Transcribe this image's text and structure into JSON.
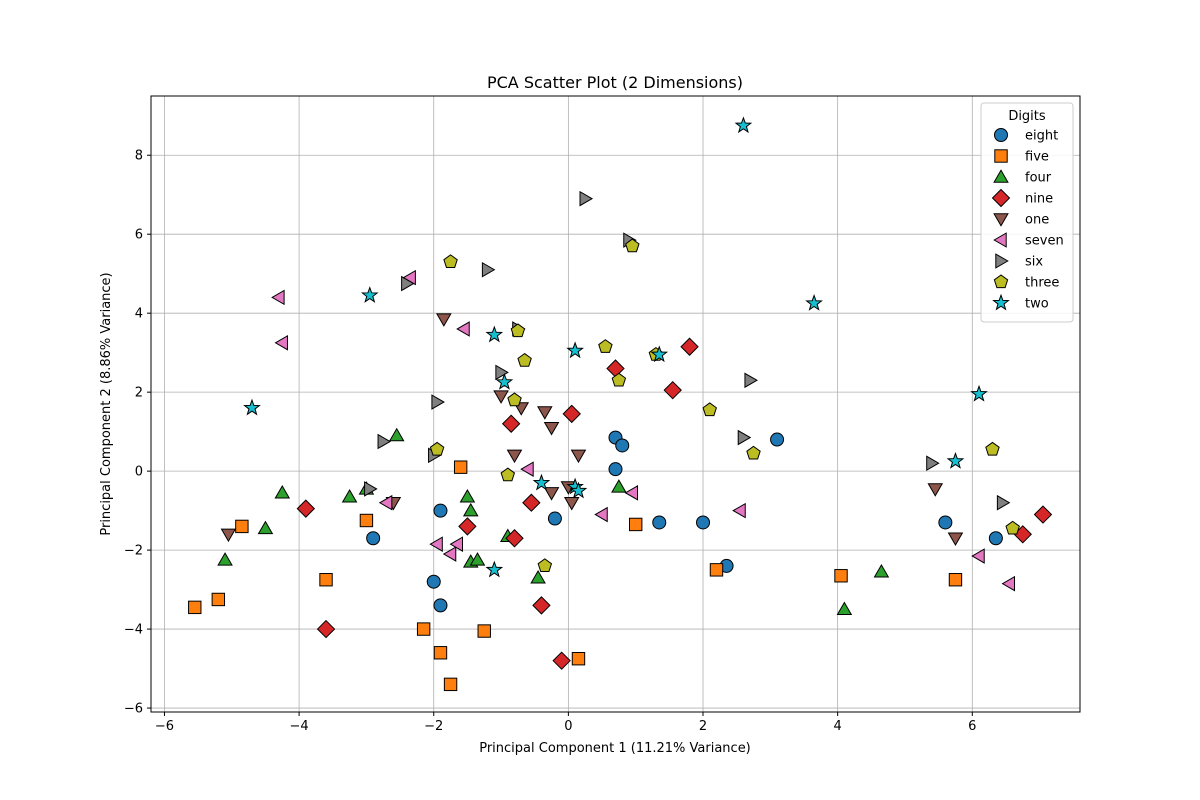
{
  "chart_data": {
    "type": "scatter",
    "title": "PCA Scatter Plot (2 Dimensions)",
    "xlabel": "Principal Component 1 (11.21% Variance)",
    "ylabel": "Principal Component 2 (8.86% Variance)",
    "xlim": [
      -6.2,
      7.6
    ],
    "ylim": [
      -6.1,
      9.5
    ],
    "xticks": [
      -6,
      -4,
      -2,
      0,
      2,
      4,
      6
    ],
    "yticks": [
      -6,
      -4,
      -2,
      0,
      2,
      4,
      6,
      8
    ],
    "xtick_labels": [
      "−6",
      "−4",
      "−2",
      "0",
      "2",
      "4",
      "6"
    ],
    "ytick_labels": [
      "−6",
      "−4",
      "−2",
      "0",
      "2",
      "4",
      "6",
      "8"
    ],
    "grid": true,
    "legend": {
      "title": "Digits",
      "placement": "top-right"
    },
    "series": [
      {
        "name": "eight",
        "marker": "circle",
        "color": "#1f77b4",
        "points": [
          [
            -2.9,
            -1.7
          ],
          [
            -1.9,
            -1.0
          ],
          [
            -2.0,
            -2.8
          ],
          [
            -1.9,
            -3.4
          ],
          [
            -0.2,
            -1.2
          ],
          [
            0.7,
            0.85
          ],
          [
            0.8,
            0.65
          ],
          [
            0.7,
            0.05
          ],
          [
            1.35,
            -1.3
          ],
          [
            2.0,
            -1.3
          ],
          [
            2.35,
            -2.4
          ],
          [
            3.1,
            0.8
          ],
          [
            5.6,
            -1.3
          ],
          [
            6.35,
            -1.7
          ]
        ]
      },
      {
        "name": "five",
        "marker": "square",
        "color": "#ff7f0e",
        "points": [
          [
            -5.55,
            -3.45
          ],
          [
            -5.2,
            -3.25
          ],
          [
            -4.85,
            -1.4
          ],
          [
            -3.6,
            -2.75
          ],
          [
            -3.0,
            -1.25
          ],
          [
            -2.15,
            -4.0
          ],
          [
            -1.9,
            -4.6
          ],
          [
            -1.75,
            -5.4
          ],
          [
            -1.6,
            0.1
          ],
          [
            -1.25,
            -4.05
          ],
          [
            0.15,
            -4.75
          ],
          [
            1.0,
            -1.35
          ],
          [
            2.2,
            -2.5
          ],
          [
            4.05,
            -2.65
          ],
          [
            5.75,
            -2.75
          ]
        ]
      },
      {
        "name": "four",
        "marker": "triangle-up",
        "color": "#2ca02c",
        "points": [
          [
            -5.1,
            -2.25
          ],
          [
            -4.5,
            -1.45
          ],
          [
            -4.25,
            -0.55
          ],
          [
            -3.25,
            -0.65
          ],
          [
            -3.0,
            -0.45
          ],
          [
            -2.55,
            0.9
          ],
          [
            -1.5,
            -0.65
          ],
          [
            -1.45,
            -1.0
          ],
          [
            -1.45,
            -2.3
          ],
          [
            -1.35,
            -2.25
          ],
          [
            -0.9,
            -1.65
          ],
          [
            -0.45,
            -2.7
          ],
          [
            0.75,
            -0.4
          ],
          [
            4.1,
            -3.5
          ],
          [
            4.65,
            -2.55
          ]
        ]
      },
      {
        "name": "nine",
        "marker": "diamond",
        "color": "#d62728",
        "points": [
          [
            -3.9,
            -0.95
          ],
          [
            -3.6,
            -4.0
          ],
          [
            -1.5,
            -1.4
          ],
          [
            -0.85,
            1.2
          ],
          [
            -0.8,
            -1.7
          ],
          [
            -0.55,
            -0.8
          ],
          [
            -0.4,
            -3.4
          ],
          [
            -0.1,
            -4.8
          ],
          [
            0.05,
            1.45
          ],
          [
            0.7,
            2.6
          ],
          [
            1.55,
            2.05
          ],
          [
            1.8,
            3.15
          ],
          [
            6.75,
            -1.6
          ],
          [
            7.05,
            -1.1
          ]
        ]
      },
      {
        "name": "one",
        "marker": "triangle-down",
        "color": "#8c564b",
        "points": [
          [
            -5.05,
            -1.6
          ],
          [
            -2.6,
            -0.8
          ],
          [
            -1.85,
            3.85
          ],
          [
            -1.0,
            1.9
          ],
          [
            -0.8,
            0.4
          ],
          [
            -0.7,
            1.6
          ],
          [
            -0.35,
            1.5
          ],
          [
            -0.25,
            1.1
          ],
          [
            -0.25,
            -0.55
          ],
          [
            0.0,
            -0.4
          ],
          [
            0.05,
            -0.8
          ],
          [
            0.15,
            0.4
          ],
          [
            5.45,
            -0.45
          ],
          [
            5.75,
            -1.7
          ]
        ]
      },
      {
        "name": "seven",
        "marker": "triangle-left",
        "color": "#e377c2",
        "points": [
          [
            -4.3,
            4.4
          ],
          [
            -4.25,
            3.25
          ],
          [
            -2.7,
            -0.8
          ],
          [
            -2.35,
            4.9
          ],
          [
            -1.95,
            -1.85
          ],
          [
            -1.75,
            -2.1
          ],
          [
            -1.65,
            -1.85
          ],
          [
            -1.55,
            3.6
          ],
          [
            -0.6,
            0.05
          ],
          [
            0.5,
            -1.1
          ],
          [
            0.95,
            -0.55
          ],
          [
            2.55,
            -1.0
          ],
          [
            6.1,
            -2.15
          ],
          [
            6.55,
            -2.85
          ]
        ]
      },
      {
        "name": "six",
        "marker": "triangle-right",
        "color": "#7f7f7f",
        "points": [
          [
            -2.95,
            -0.45
          ],
          [
            -2.75,
            0.75
          ],
          [
            -2.4,
            4.75
          ],
          [
            -2.0,
            0.4
          ],
          [
            -1.95,
            1.75
          ],
          [
            -1.2,
            5.1
          ],
          [
            -1.0,
            2.5
          ],
          [
            -0.75,
            3.6
          ],
          [
            0.25,
            6.9
          ],
          [
            0.9,
            5.85
          ],
          [
            2.6,
            0.85
          ],
          [
            2.7,
            2.3
          ],
          [
            5.4,
            0.2
          ],
          [
            6.45,
            -0.8
          ]
        ]
      },
      {
        "name": "three",
        "marker": "pentagon",
        "color": "#bcbd22",
        "points": [
          [
            -1.95,
            0.55
          ],
          [
            -1.75,
            5.3
          ],
          [
            -0.9,
            -0.1
          ],
          [
            -0.8,
            1.8
          ],
          [
            -0.75,
            3.55
          ],
          [
            -0.65,
            2.8
          ],
          [
            -0.35,
            -2.4
          ],
          [
            0.55,
            3.15
          ],
          [
            0.75,
            2.3
          ],
          [
            0.95,
            5.7
          ],
          [
            1.3,
            2.95
          ],
          [
            2.1,
            1.55
          ],
          [
            2.75,
            0.45
          ],
          [
            6.3,
            0.55
          ],
          [
            6.6,
            -1.45
          ]
        ]
      },
      {
        "name": "two",
        "marker": "star",
        "color": "#17becf",
        "points": [
          [
            -4.7,
            1.6
          ],
          [
            -2.95,
            4.45
          ],
          [
            -1.1,
            3.45
          ],
          [
            -1.1,
            -2.5
          ],
          [
            -0.95,
            2.25
          ],
          [
            -0.4,
            -0.3
          ],
          [
            0.1,
            3.05
          ],
          [
            0.1,
            -0.4
          ],
          [
            0.15,
            -0.5
          ],
          [
            1.35,
            2.95
          ],
          [
            2.6,
            8.75
          ],
          [
            3.65,
            4.25
          ],
          [
            5.75,
            0.25
          ],
          [
            6.1,
            1.95
          ]
        ]
      }
    ]
  }
}
